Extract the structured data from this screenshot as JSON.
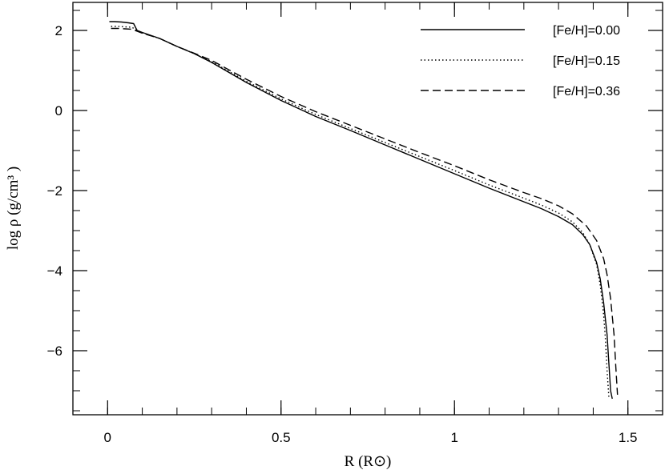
{
  "chart_data": {
    "type": "line",
    "xlabel": "R  (R⊙)",
    "ylabel": "log ρ  (g/cm³ )",
    "xlim": [
      -0.1,
      1.6
    ],
    "ylim": [
      -7.6,
      2.7
    ],
    "x_ticks": [
      {
        "value": 0,
        "label": "0"
      },
      {
        "value": 0.5,
        "label": "0.5"
      },
      {
        "value": 1,
        "label": "1"
      },
      {
        "value": 1.5,
        "label": "1.5"
      }
    ],
    "y_ticks": [
      {
        "value": 2,
        "label": "2"
      },
      {
        "value": 0,
        "label": "0"
      },
      {
        "value": -2,
        "label": "−2"
      },
      {
        "value": -4,
        "label": "−4"
      },
      {
        "value": -6,
        "label": "−6"
      }
    ],
    "x_minor_step": 0.1,
    "y_minor_step": 0.5,
    "legend_position": "top-right",
    "series": [
      {
        "name": "[Fe/H]=0.00",
        "style": "solid",
        "x": [
          0.005,
          0.02,
          0.04,
          0.06,
          0.075,
          0.085,
          0.1,
          0.15,
          0.2,
          0.25,
          0.3,
          0.4,
          0.5,
          0.6,
          0.7,
          0.8,
          0.9,
          1.0,
          1.1,
          1.2,
          1.25,
          1.3,
          1.34,
          1.37,
          1.39,
          1.41,
          1.42,
          1.43,
          1.44,
          1.445,
          1.45,
          1.455
        ],
        "y": [
          2.22,
          2.22,
          2.21,
          2.19,
          2.17,
          2.0,
          1.95,
          1.8,
          1.6,
          1.42,
          1.2,
          0.7,
          0.25,
          -0.15,
          -0.5,
          -0.86,
          -1.22,
          -1.58,
          -1.94,
          -2.28,
          -2.45,
          -2.65,
          -2.85,
          -3.1,
          -3.35,
          -3.8,
          -4.2,
          -4.8,
          -5.6,
          -6.3,
          -7.0,
          -7.2
        ]
      },
      {
        "name": "[Fe/H]=0.15",
        "style": "dotted",
        "x": [
          0.01,
          0.03,
          0.05,
          0.07,
          0.085,
          0.1,
          0.15,
          0.2,
          0.25,
          0.3,
          0.4,
          0.5,
          0.6,
          0.7,
          0.8,
          0.9,
          1.0,
          1.1,
          1.2,
          1.25,
          1.3,
          1.34,
          1.37,
          1.39,
          1.41,
          1.42,
          1.43,
          1.435,
          1.44,
          1.445
        ],
        "y": [
          2.1,
          2.1,
          2.09,
          2.08,
          2.0,
          1.94,
          1.8,
          1.6,
          1.42,
          1.22,
          0.73,
          0.29,
          -0.1,
          -0.45,
          -0.8,
          -1.15,
          -1.5,
          -1.86,
          -2.19,
          -2.36,
          -2.56,
          -2.78,
          -3.05,
          -3.35,
          -3.85,
          -4.35,
          -5.1,
          -5.7,
          -6.5,
          -7.15
        ]
      },
      {
        "name": "[Fe/H]=0.36",
        "style": "dashed",
        "x": [
          0.01,
          0.03,
          0.05,
          0.07,
          0.085,
          0.1,
          0.15,
          0.2,
          0.25,
          0.3,
          0.4,
          0.5,
          0.6,
          0.7,
          0.8,
          0.9,
          1.0,
          1.1,
          1.2,
          1.25,
          1.3,
          1.34,
          1.38,
          1.41,
          1.43,
          1.44,
          1.45,
          1.46,
          1.465,
          1.47
        ],
        "y": [
          2.05,
          2.05,
          2.04,
          2.03,
          1.98,
          1.93,
          1.8,
          1.6,
          1.43,
          1.25,
          0.78,
          0.35,
          -0.03,
          -0.37,
          -0.71,
          -1.05,
          -1.38,
          -1.73,
          -2.05,
          -2.2,
          -2.38,
          -2.58,
          -2.88,
          -3.25,
          -3.7,
          -4.1,
          -4.7,
          -5.6,
          -6.4,
          -7.1
        ]
      }
    ]
  }
}
